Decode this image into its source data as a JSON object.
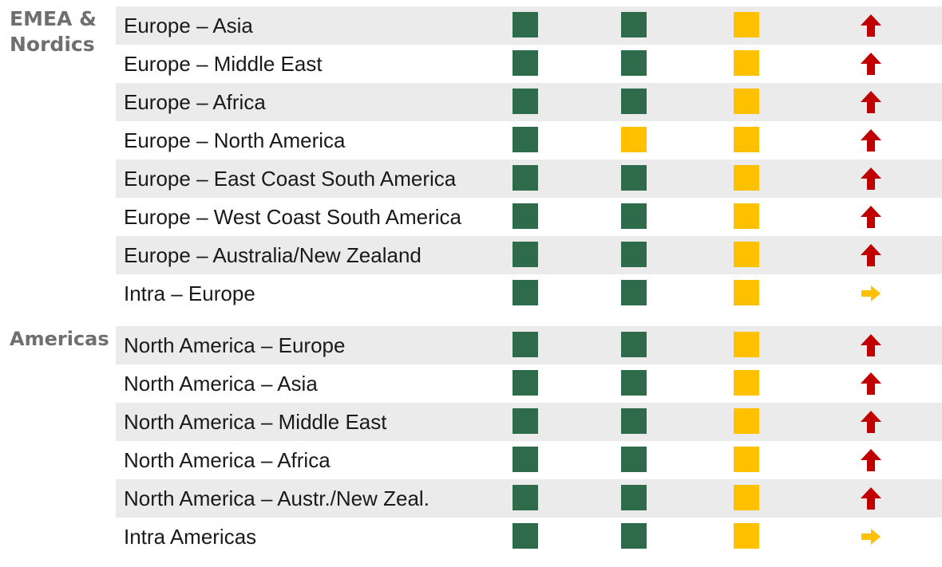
{
  "colors": {
    "green": "#2e6b4a",
    "yellow": "#ffc000",
    "up": "#c00000",
    "right": "#ffc000"
  },
  "sections": [
    {
      "label": "EMEA & Nordics",
      "rows": [
        {
          "lane": "Europe – Asia",
          "status": [
            "green",
            "green",
            "yellow"
          ],
          "trend": "up-arrow-icon"
        },
        {
          "lane": "Europe – Middle East",
          "status": [
            "green",
            "green",
            "yellow"
          ],
          "trend": "up-arrow-icon"
        },
        {
          "lane": "Europe – Africa",
          "status": [
            "green",
            "green",
            "yellow"
          ],
          "trend": "up-arrow-icon"
        },
        {
          "lane": "Europe – North America",
          "status": [
            "green",
            "yellow",
            "yellow"
          ],
          "trend": "up-arrow-icon"
        },
        {
          "lane": "Europe – East Coast South America",
          "status": [
            "green",
            "green",
            "yellow"
          ],
          "trend": "up-arrow-icon"
        },
        {
          "lane": "Europe – West Coast South America",
          "status": [
            "green",
            "green",
            "yellow"
          ],
          "trend": "up-arrow-icon"
        },
        {
          "lane": "Europe – Australia/New Zealand",
          "status": [
            "green",
            "green",
            "yellow"
          ],
          "trend": "up-arrow-icon"
        },
        {
          "lane": "Intra – Europe",
          "status": [
            "green",
            "green",
            "yellow"
          ],
          "trend": "right-arrow-icon"
        }
      ]
    },
    {
      "label": "Americas",
      "rows": [
        {
          "lane": "North America – Europe",
          "status": [
            "green",
            "green",
            "yellow"
          ],
          "trend": "up-arrow-icon"
        },
        {
          "lane": "North America – Asia",
          "status": [
            "green",
            "green",
            "yellow"
          ],
          "trend": "up-arrow-icon"
        },
        {
          "lane": "North America – Middle East",
          "status": [
            "green",
            "green",
            "yellow"
          ],
          "trend": "up-arrow-icon"
        },
        {
          "lane": "North America – Africa",
          "status": [
            "green",
            "green",
            "yellow"
          ],
          "trend": "up-arrow-icon"
        },
        {
          "lane": "North America – Austr./New Zeal.",
          "status": [
            "green",
            "green",
            "yellow"
          ],
          "trend": "up-arrow-icon"
        },
        {
          "lane": "Intra Americas",
          "status": [
            "green",
            "green",
            "yellow"
          ],
          "trend": "right-arrow-icon"
        }
      ]
    }
  ]
}
